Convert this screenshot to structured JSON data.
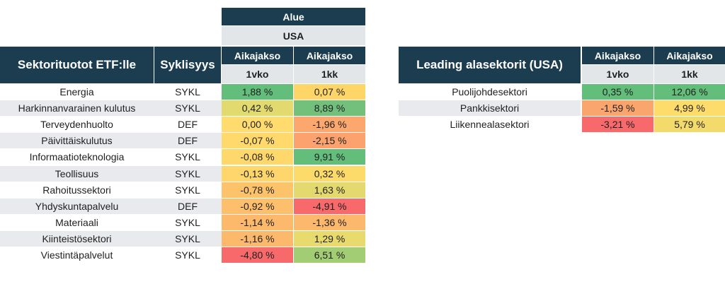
{
  "region": {
    "label": "Alue",
    "value": "USA"
  },
  "left_table": {
    "title": "Sektorituotot ETF:lle",
    "cyc_header": "Syklisyys",
    "period_label": "Aikajakso",
    "period_1": "1vko",
    "period_2": "1kk",
    "rows": [
      {
        "name": "Energia",
        "cyc": "SYKL",
        "v1": "1,88 %",
        "v2": "0,07 %",
        "c1": "#63be7b",
        "c2": "#fed668"
      },
      {
        "name": "Harkinnanvarainen kulutus",
        "cyc": "SYKL",
        "v1": "0,42 %",
        "v2": "8,89 %",
        "c1": "#e2d96f",
        "c2": "#73c07c"
      },
      {
        "name": "Terveydenhuolto",
        "cyc": "DEF",
        "v1": "0,00 %",
        "v2": "-1,96 %",
        "c1": "#ffdc6d",
        "c2": "#fba76e"
      },
      {
        "name": "Päivittäiskulutus",
        "cyc": "DEF",
        "v1": "-0,07 %",
        "v2": "-2,15 %",
        "c1": "#ffd96c",
        "c2": "#fba26e"
      },
      {
        "name": "Informaatioteknologia",
        "cyc": "SYKL",
        "v1": "-0,08 %",
        "v2": "9,91 %",
        "c1": "#ffd86c",
        "c2": "#63be7b"
      },
      {
        "name": "Teollisuus",
        "cyc": "SYKL",
        "v1": "-0,13 %",
        "v2": "0,32 %",
        "c1": "#fed66c",
        "c2": "#fcdb6a"
      },
      {
        "name": "Rahoitussektori",
        "cyc": "SYKL",
        "v1": "-0,78 %",
        "v2": "1,63 %",
        "c1": "#fdc36b",
        "c2": "#e4d96e"
      },
      {
        "name": "Yhdyskuntapalvelu",
        "cyc": "DEF",
        "v1": "-0,92 %",
        "v2": "-4,91 %",
        "c1": "#fdbf6b",
        "c2": "#f8696b"
      },
      {
        "name": "Materiaali",
        "cyc": "SYKL",
        "v1": "-1,14 %",
        "v2": "-1,36 %",
        "c1": "#fcb96b",
        "c2": "#fcb96d"
      },
      {
        "name": "Kiinteistösektori",
        "cyc": "SYKL",
        "v1": "-1,16 %",
        "v2": "1,29 %",
        "c1": "#fcb86b",
        "c2": "#e8da6c"
      },
      {
        "name": "Viestintäpalvelut",
        "cyc": "SYKL",
        "v1": "-4,80 %",
        "v2": "6,51 %",
        "c1": "#f8696b",
        "c2": "#a3cd75"
      }
    ]
  },
  "right_table": {
    "title": "Leading alasektorit (USA)",
    "period_label": "Aikajakso",
    "period_1": "1vko",
    "period_2": "1kk",
    "rows": [
      {
        "name": "Puolijohdesektori",
        "v1": "0,35 %",
        "v2": "12,06 %",
        "c1": "#63be7b",
        "c2": "#63be7b"
      },
      {
        "name": "Pankkisektori",
        "v1": "-1,59 %",
        "v2": "4,99 %",
        "c1": "#fba56e",
        "c2": "#fedc6b"
      },
      {
        "name": "Liikennealasektori",
        "v1": "-3,21 %",
        "v2": "5,79 %",
        "c1": "#f8696b",
        "c2": "#f2da6b"
      }
    ]
  }
}
